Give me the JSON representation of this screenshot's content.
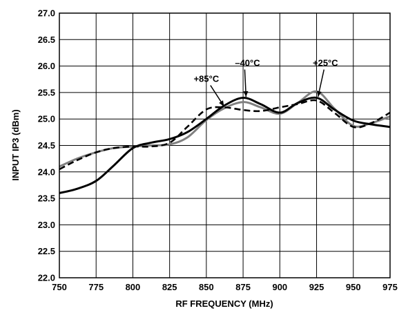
{
  "chart_data": {
    "type": "line",
    "title": "",
    "xlabel": "RF FREQUENCY (MHz)",
    "ylabel": "INPUT IP3 (dBm)",
    "xlim": [
      750,
      975
    ],
    "ylim": [
      22.0,
      27.0
    ],
    "x_ticks": [
      750,
      775,
      800,
      825,
      850,
      875,
      900,
      925,
      950,
      975
    ],
    "y_ticks": [
      "22.0",
      "22.5",
      "23.0",
      "23.5",
      "24.0",
      "24.5",
      "25.0",
      "25.5",
      "26.0",
      "26.5",
      "27.0"
    ],
    "grid": true,
    "series": [
      {
        "name": "−40°C",
        "color": "#000000",
        "dash": "solid",
        "x": [
          750,
          762,
          775,
          787,
          800,
          812,
          825,
          837,
          850,
          862,
          875,
          887,
          900,
          912,
          925,
          937,
          950,
          962,
          975
        ],
        "y": [
          23.6,
          23.68,
          23.83,
          24.12,
          24.45,
          24.55,
          24.62,
          24.75,
          25.0,
          25.25,
          25.4,
          25.28,
          25.12,
          25.3,
          25.4,
          25.18,
          24.97,
          24.9,
          24.85
        ]
      },
      {
        "name": "+25°C",
        "color": "#808080",
        "dash": "solid",
        "x": [
          750,
          762,
          775,
          787,
          800,
          812,
          825,
          837,
          850,
          862,
          875,
          887,
          900,
          912,
          925,
          937,
          950,
          962,
          975
        ],
        "y": [
          24.1,
          24.25,
          24.37,
          24.45,
          24.48,
          24.5,
          24.52,
          24.65,
          24.98,
          25.2,
          25.32,
          25.22,
          25.1,
          25.3,
          25.52,
          25.2,
          24.87,
          24.92,
          25.05
        ]
      },
      {
        "name": "+85°C",
        "color": "#000000",
        "dash": "dashed",
        "x": [
          750,
          762,
          775,
          787,
          800,
          812,
          825,
          837,
          850,
          862,
          875,
          887,
          900,
          912,
          925,
          937,
          950,
          962,
          975
        ],
        "y": [
          24.05,
          24.22,
          24.37,
          24.45,
          24.48,
          24.48,
          24.55,
          24.85,
          25.18,
          25.22,
          25.17,
          25.15,
          25.22,
          25.28,
          25.35,
          25.12,
          24.85,
          24.92,
          25.12
        ]
      }
    ],
    "annotations": [
      {
        "text": "+85°C",
        "x": 850,
        "y": 25.7,
        "arrow_to_x": 862,
        "arrow_to_y": 25.24
      },
      {
        "text": "–40°C",
        "x": 878,
        "y": 26.0,
        "arrow_to_x": 877,
        "arrow_to_y": 25.42
      },
      {
        "text": "+25°C",
        "x": 931,
        "y": 26.0,
        "arrow_to_x": 926,
        "arrow_to_y": 25.42
      }
    ]
  }
}
